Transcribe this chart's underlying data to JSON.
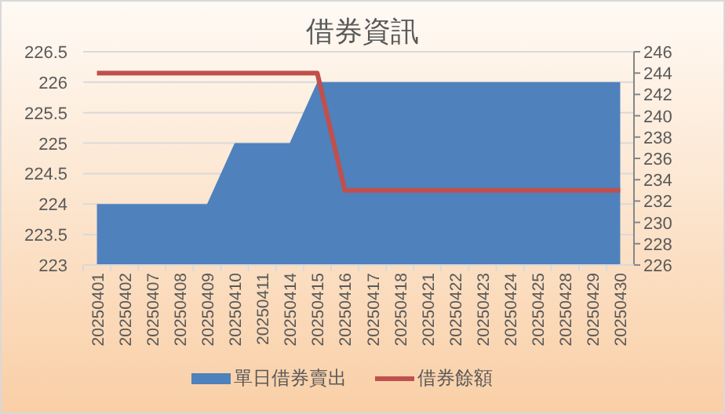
{
  "chart_data": {
    "type": "area",
    "title": "借券資訊",
    "categories": [
      "20250401",
      "20250402",
      "20250407",
      "20250408",
      "20250409",
      "20250410",
      "20250411",
      "20250414",
      "20250415",
      "20250416",
      "20250417",
      "20250418",
      "20250421",
      "20250422",
      "20250423",
      "20250424",
      "20250425",
      "20250428",
      "20250429",
      "20250430"
    ],
    "series": [
      {
        "name": "單日借券賣出",
        "color": "#4f81bd",
        "values": [
          224,
          224,
          224,
          224,
          224,
          225,
          225,
          225,
          226,
          226,
          226,
          226,
          226,
          226,
          226,
          226,
          226,
          226,
          226,
          226
        ]
      },
      {
        "name": "借券餘額",
        "type": "line",
        "axis": "y2",
        "color": "#c0504d",
        "values": [
          244,
          244,
          244,
          244,
          244,
          244,
          244,
          244,
          244,
          233,
          233,
          233,
          233,
          233,
          233,
          233,
          233,
          233,
          233,
          233
        ]
      }
    ],
    "ylim": [
      223,
      226.5
    ],
    "yticks": [
      223,
      223.5,
      224,
      224.5,
      225,
      225.5,
      226,
      226.5
    ],
    "y2lim": [
      226,
      246
    ],
    "y2ticks": [
      226,
      228,
      230,
      232,
      234,
      236,
      238,
      240,
      242,
      244,
      246
    ],
    "grid": "y",
    "legend": "bottom",
    "marker": "none",
    "line_style": "solid"
  }
}
